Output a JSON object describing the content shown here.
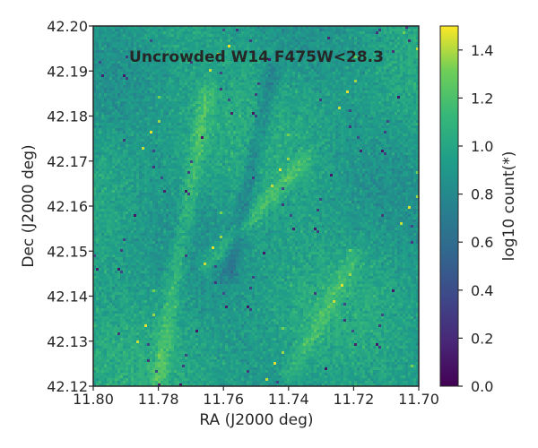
{
  "chart_data": {
    "type": "heatmap",
    "title": "Uncrowded W14 F475W<28.3",
    "xlabel": "RA (J2000 deg)",
    "ylabel": "Dec (J2000 deg)",
    "colorbar_label": "log10 count(*)",
    "colormap": "viridis",
    "xlim": [
      11.8,
      11.7
    ],
    "ylim": [
      42.12,
      42.2
    ],
    "clim": [
      0.0,
      1.5
    ],
    "x_ticks": [
      11.8,
      11.78,
      11.76,
      11.74,
      11.72,
      11.7
    ],
    "x_tick_labels": [
      "11.80",
      "11.78",
      "11.76",
      "11.74",
      "11.72",
      "11.70"
    ],
    "y_ticks": [
      42.12,
      42.13,
      42.14,
      42.15,
      42.16,
      42.17,
      42.18,
      42.19,
      42.2
    ],
    "y_tick_labels": [
      "42.12",
      "42.13",
      "42.14",
      "42.15",
      "42.16",
      "42.17",
      "42.18",
      "42.19",
      "42.20"
    ],
    "colorbar_ticks": [
      0.0,
      0.2,
      0.4,
      0.6,
      0.8,
      1.0,
      1.2,
      1.4
    ],
    "colorbar_tick_labels": [
      "0.0",
      "0.2",
      "0.4",
      "0.6",
      "0.8",
      "1.0",
      "1.2",
      "1.4"
    ],
    "typical_value": 0.95,
    "features": [
      {
        "name": "diagonal-band-upper",
        "ra_start": 11.735,
        "dec_start": 42.17,
        "ra_end": 11.765,
        "dec_end": 42.147,
        "value": 1.15
      },
      {
        "name": "diagonal-band-lower",
        "ra_start": 11.72,
        "dec_start": 42.148,
        "ra_end": 11.74,
        "dec_end": 42.122,
        "value": 1.1
      },
      {
        "name": "bright-streak-left",
        "ra_start": 11.765,
        "dec_start": 42.185,
        "ra_end": 11.78,
        "dec_end": 42.122,
        "value": 1.15
      },
      {
        "name": "dark-lane-center",
        "ra_start": 11.745,
        "dec_start": 42.19,
        "ra_end": 11.758,
        "dec_end": 42.145,
        "value": 0.75
      }
    ]
  }
}
